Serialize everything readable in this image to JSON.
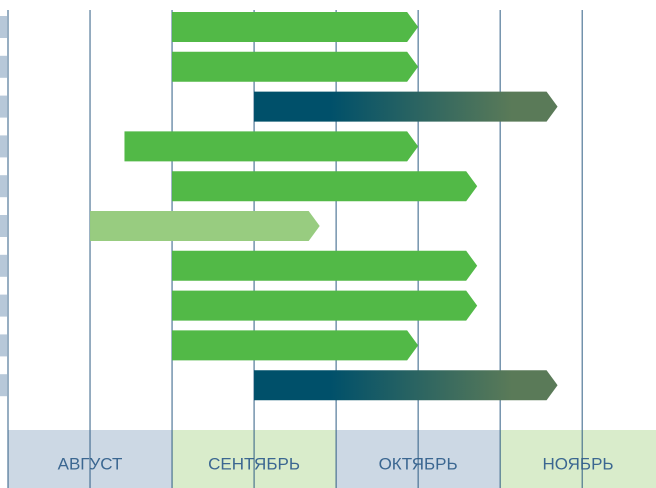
{
  "chart_data": {
    "type": "gantt",
    "months": [
      "АВГУСТ",
      "СЕНТЯБРЬ",
      "ОКТЯБРЬ",
      "НОЯБРЬ"
    ],
    "month_colors": [
      "#ccd8e4",
      "#d9eccb",
      "#ccd8e4",
      "#d9eccb"
    ],
    "xlim": [
      0,
      3.95
    ],
    "xticks": [
      0,
      0.5,
      1,
      1.5,
      2,
      2.5,
      3,
      3.5
    ],
    "grid": true,
    "bars": [
      {
        "start": 1,
        "end": 2.5,
        "color": "#52b947"
      },
      {
        "start": 1,
        "end": 2.5,
        "color": "#52b947"
      },
      {
        "start": 1.5,
        "end": 3.35,
        "color": [
          "#00506a",
          "#5a7a58"
        ]
      },
      {
        "start": 0.71,
        "end": 2.5,
        "color": "#52b947"
      },
      {
        "start": 1,
        "end": 2.86,
        "color": "#52b947"
      },
      {
        "start": 0.5,
        "end": 1.9,
        "color": "#98cc80"
      },
      {
        "start": 1,
        "end": 2.86,
        "color": "#52b947"
      },
      {
        "start": 1,
        "end": 2.86,
        "color": "#52b947"
      },
      {
        "start": 1,
        "end": 2.5,
        "color": "#52b947"
      },
      {
        "start": 1.5,
        "end": 3.35,
        "color": [
          "#00506a",
          "#5a7a58"
        ]
      }
    ]
  }
}
